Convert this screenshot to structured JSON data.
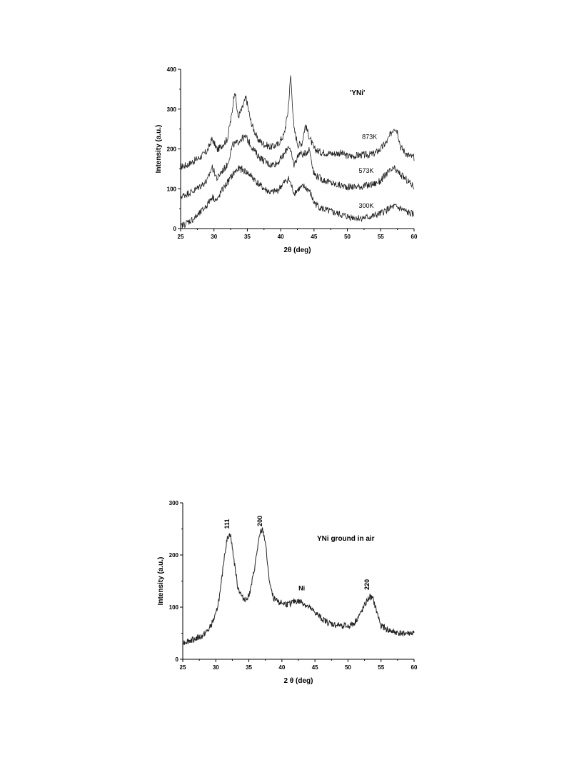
{
  "chart_data": [
    {
      "type": "line",
      "title": "'YNi'",
      "xlabel": "2θ (deg)",
      "ylabel": "Intensity (a.u.)",
      "xlim": [
        25,
        60
      ],
      "ylim": [
        0,
        400
      ],
      "xticks": [
        25,
        30,
        35,
        40,
        45,
        50,
        55,
        60
      ],
      "yticks": [
        0,
        100,
        200,
        300,
        400
      ],
      "grid": false,
      "series": [
        {
          "name": "873K",
          "x": [
            25,
            26,
            27,
            28,
            29,
            29.7,
            30.5,
            31,
            32,
            32.7,
            33.1,
            33.6,
            34.2,
            34.8,
            35.5,
            36.5,
            37.5,
            38.5,
            39.5,
            40.5,
            41.1,
            41.5,
            42,
            42.6,
            43.2,
            43.7,
            44.2,
            45,
            46,
            47,
            48,
            49,
            50,
            51,
            52,
            53,
            54,
            55,
            56,
            57,
            57.5,
            58,
            59,
            60
          ],
          "y": [
            155,
            160,
            170,
            180,
            195,
            225,
            198,
            205,
            225,
            290,
            350,
            280,
            300,
            330,
            270,
            225,
            212,
            205,
            210,
            235,
            295,
            385,
            250,
            210,
            215,
            260,
            235,
            200,
            192,
            190,
            188,
            190,
            182,
            182,
            185,
            185,
            188,
            200,
            220,
            255,
            245,
            205,
            185,
            178
          ]
        },
        {
          "name": "573K",
          "x": [
            25,
            26,
            27,
            28,
            29,
            29.7,
            30.5,
            31,
            32,
            32.8,
            33.5,
            34,
            34.8,
            35.5,
            36.5,
            37.5,
            38.5,
            39.5,
            40.5,
            41.2,
            42,
            42.8,
            43.5,
            44.3,
            45,
            46,
            47,
            48,
            49,
            50,
            51,
            52,
            53,
            54,
            55,
            56,
            57,
            58,
            59,
            60
          ],
          "y": [
            80,
            88,
            95,
            108,
            120,
            155,
            125,
            140,
            160,
            210,
            215,
            225,
            230,
            210,
            185,
            170,
            160,
            165,
            185,
            210,
            160,
            190,
            185,
            200,
            138,
            125,
            118,
            112,
            108,
            105,
            105,
            106,
            108,
            112,
            120,
            140,
            150,
            135,
            120,
            105
          ]
        },
        {
          "name": "300K",
          "x": [
            25,
            26,
            27,
            28,
            29,
            29.7,
            30.5,
            31,
            32,
            33,
            33.7,
            34.3,
            35,
            35.7,
            36.5,
            37.5,
            38.5,
            39.5,
            40.5,
            41.2,
            42,
            42.8,
            43.5,
            44.3,
            45,
            46,
            47,
            48,
            49,
            50,
            51,
            52,
            53,
            54,
            55,
            56,
            57,
            58,
            59,
            60
          ],
          "y": [
            5,
            15,
            25,
            40,
            60,
            80,
            70,
            90,
            115,
            140,
            150,
            148,
            140,
            130,
            115,
            100,
            90,
            95,
            115,
            125,
            90,
            100,
            105,
            95,
            65,
            52,
            45,
            40,
            35,
            30,
            28,
            26,
            28,
            32,
            38,
            48,
            55,
            50,
            40,
            35
          ]
        }
      ]
    },
    {
      "type": "line",
      "title": "YNi ground in air",
      "xlabel": "2 θ (deg)",
      "ylabel": "Intensity (a.u.)",
      "xlim": [
        25,
        60
      ],
      "ylim": [
        0,
        300
      ],
      "xticks": [
        25,
        30,
        35,
        40,
        45,
        50,
        55,
        60
      ],
      "yticks": [
        0,
        100,
        200,
        300
      ],
      "grid": false,
      "annotations": [
        {
          "text": "111",
          "x": 32.0,
          "y": 250,
          "rotate": true
        },
        {
          "text": "200",
          "x": 37.0,
          "y": 255,
          "rotate": true
        },
        {
          "text": "Ni",
          "x": 43.0,
          "y": 132,
          "rotate": false
        },
        {
          "text": "220",
          "x": 53.2,
          "y": 133,
          "rotate": true
        }
      ],
      "series": [
        {
          "x": [
            25,
            26,
            27,
            28,
            29,
            30,
            30.7,
            31.3,
            31.8,
            32.2,
            32.7,
            33.3,
            34,
            34.6,
            35.2,
            35.8,
            36.4,
            36.8,
            37.1,
            37.5,
            38,
            38.5,
            39,
            40,
            41,
            42,
            43,
            44,
            45,
            46,
            47,
            48,
            49,
            50,
            51,
            52,
            52.8,
            53.3,
            53.8,
            54.5,
            55,
            56,
            57,
            58,
            59,
            60
          ],
          "y": [
            32,
            36,
            40,
            45,
            58,
            85,
            130,
            200,
            235,
            240,
            195,
            140,
            118,
            115,
            130,
            170,
            220,
            245,
            248,
            225,
            160,
            125,
            112,
            108,
            105,
            112,
            110,
            100,
            90,
            78,
            70,
            66,
            65,
            63,
            70,
            90,
            110,
            120,
            115,
            85,
            65,
            56,
            52,
            50,
            50,
            50
          ]
        }
      ]
    }
  ]
}
